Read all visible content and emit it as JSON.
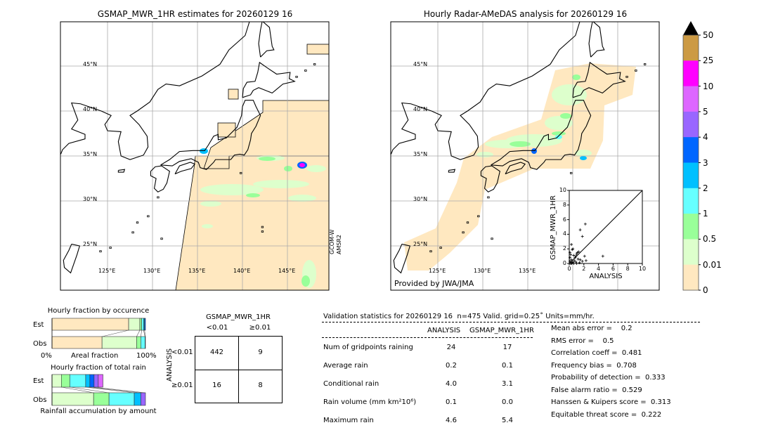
{
  "left_map": {
    "title": "GSMAP_MWR_1HR estimates for 20260129 16",
    "lat_labels": [
      "45°N",
      "40°N",
      "35°N",
      "30°N",
      "25°N"
    ],
    "lon_labels": [
      "125°E",
      "130°E",
      "135°E",
      "140°E",
      "145°E"
    ],
    "sensor_label": [
      "GCOM-W",
      "AMSR2"
    ]
  },
  "right_map": {
    "title": "Hourly Radar-AMeDAS analysis for 20260129 16",
    "lat_labels": [
      "45°N",
      "40°N",
      "35°N",
      "30°N",
      "25°N"
    ],
    "lon_labels": [
      "125°E",
      "130°E",
      "135°E"
    ],
    "credit": "Provided by JWA/JMA"
  },
  "colorbar": {
    "labels": [
      "50",
      "25",
      "10",
      "5",
      "4",
      "3",
      "2",
      "1",
      "0.5",
      "0.01",
      "0"
    ],
    "colors": [
      "#cc9a44",
      "#ff00ff",
      "#dd66ff",
      "#9966ff",
      "#0066ff",
      "#00c0ff",
      "#66ffff",
      "#99ff99",
      "#ddffcc",
      "#ffe8c0"
    ],
    "extend_color": "#000000"
  },
  "chart_data": [
    {
      "type": "scatter",
      "xlabel": "ANALYSIS",
      "ylabel": "GSMAP_MWR_1HR",
      "xlim": [
        0,
        10
      ],
      "ylim": [
        0,
        10
      ],
      "xticks": [
        "0",
        "2",
        "4",
        "6",
        "8",
        "10"
      ],
      "yticks": [
        "0",
        "2",
        "4",
        "6",
        "8",
        "10"
      ],
      "diagonal": true,
      "points": [
        [
          2.2,
          5.4
        ],
        [
          1.5,
          4.6
        ],
        [
          1.8,
          3.7
        ],
        [
          0.3,
          2.6
        ],
        [
          0.5,
          2.0
        ],
        [
          0.4,
          1.9
        ],
        [
          0.1,
          1.5
        ],
        [
          0.2,
          1.2
        ],
        [
          0.6,
          1.1
        ],
        [
          0.9,
          1.0
        ],
        [
          1.0,
          1.3
        ],
        [
          1.1,
          1.5
        ],
        [
          1.3,
          1.6
        ],
        [
          2.1,
          1.0
        ],
        [
          4.6,
          1.0
        ],
        [
          2.3,
          0.4
        ],
        [
          0.8,
          0.8
        ],
        [
          1.2,
          0.6
        ],
        [
          1.5,
          0.5
        ],
        [
          0.1,
          0.3
        ],
        [
          0.3,
          0.5
        ],
        [
          0.5,
          0.2
        ],
        [
          0.7,
          0.4
        ],
        [
          0.9,
          0.2
        ],
        [
          0.2,
          0.0
        ],
        [
          0.4,
          0.1
        ],
        [
          0.6,
          0.0
        ],
        [
          1.0,
          0.0
        ],
        [
          1.4,
          0.1
        ],
        [
          1.8,
          0.3
        ],
        [
          0.1,
          0.8
        ],
        [
          0.3,
          0.0
        ]
      ]
    },
    {
      "type": "bar",
      "title": "Hourly fraction by occurence",
      "xlabel": "Areal fraction",
      "xticks": [
        "0%",
        "100%"
      ],
      "categories": [
        "Est",
        "Obs"
      ],
      "series": [
        {
          "category": "Est",
          "segments": [
            [
              0.82,
              "#ffe8c0"
            ],
            [
              0.12,
              "#ddffcc"
            ],
            [
              0.02,
              "#99ff99"
            ],
            [
              0.02,
              "#66ffff"
            ],
            [
              0.01,
              "#00c0ff"
            ],
            [
              0.01,
              "#0066ff"
            ]
          ]
        },
        {
          "category": "Obs",
          "segments": [
            [
              0.535,
              "#ffe8c0"
            ],
            [
              0.37,
              "#ddffcc"
            ],
            [
              0.045,
              "#99ff99"
            ],
            [
              0.045,
              "#66ffff"
            ],
            [
              0.005,
              "#00c0ff"
            ]
          ]
        }
      ]
    },
    {
      "type": "bar",
      "title": "Hourly fraction of total rain",
      "xlabel": "Rainfall accumulation by amount",
      "categories": [
        "Est",
        "Obs"
      ],
      "series": [
        {
          "category": "Est",
          "segments": [
            [
              0.1,
              "#ddffcc"
            ],
            [
              0.09,
              "#99ff99"
            ],
            [
              0.17,
              "#66ffff"
            ],
            [
              0.045,
              "#00c0ff"
            ],
            [
              0.045,
              "#0066ff"
            ],
            [
              0.045,
              "#9966ff"
            ],
            [
              0.05,
              "#dd66ff"
            ]
          ]
        },
        {
          "category": "Obs",
          "segments": [
            [
              0.445,
              "#ddffcc"
            ],
            [
              0.165,
              "#99ff99"
            ],
            [
              0.27,
              "#66ffff"
            ],
            [
              0.07,
              "#00c0ff"
            ],
            [
              0.05,
              "#9966ff"
            ]
          ]
        }
      ]
    }
  ],
  "contingency": {
    "title": "GSMAP_MWR_1HR",
    "col_headers": [
      "<0.01",
      "≥0.01"
    ],
    "row_axis": "ANALYSIS",
    "row_headers": [
      "<0.01",
      "≥0.01"
    ],
    "cells": [
      [
        "442",
        "9"
      ],
      [
        "16",
        "8"
      ]
    ]
  },
  "stats": {
    "header": "Validation statistics for 20260129 16  n=475 Valid. grid=0.25˚ Units=mm/hr.",
    "col_headers": [
      "ANALYSIS",
      "GSMAP_MWR_1HR"
    ],
    "rows": [
      {
        "label": "Num of gridpoints raining",
        "a": "24",
        "b": "17"
      },
      {
        "label": "Average rain",
        "a": "0.2",
        "b": "0.1"
      },
      {
        "label": "Conditional rain",
        "a": "4.0",
        "b": "3.1"
      },
      {
        "label": "Rain volume (mm km²10⁶)",
        "a": "0.1",
        "b": "0.0"
      },
      {
        "label": "Maximum rain",
        "a": "4.6",
        "b": "5.4"
      }
    ],
    "scores": [
      "Mean abs error =    0.2",
      "RMS error =    0.5",
      "Correlation coeff =  0.481",
      "Frequency bias =  0.708",
      "Probability of detection =  0.333",
      "False alarm ratio =  0.529",
      "Hanssen & Kuipers score =  0.313",
      "Equitable threat score =  0.222"
    ]
  }
}
